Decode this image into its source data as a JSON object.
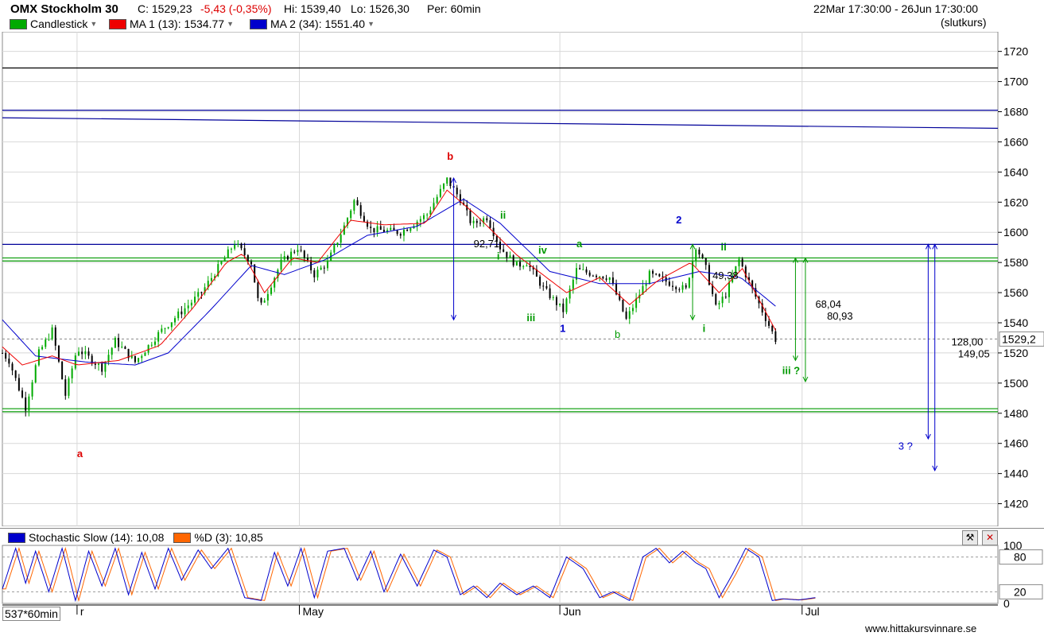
{
  "header": {
    "instrument": "OMX Stockholm 30",
    "close": "C: 1529,23",
    "change": "-5,43 (-0,35%)",
    "high": "Hi: 1539,40",
    "low": "Lo: 1526,30",
    "period": "Per: 60min",
    "range": "22Mar 17:30:00 - 26Jun 17:30:00",
    "price_type": "(slutkurs)"
  },
  "legend": {
    "candlestick": "Candlestick",
    "ma1": "MA 1 (13): 1534.77",
    "ma2": "MA 2 (34): 1551.40"
  },
  "colors": {
    "up": "#00aa00",
    "down": "#000000",
    "ma1": "#ee0000",
    "ma2": "#0000cc",
    "support": "#009900",
    "resistance": "#000099",
    "stoch_k": "#0000cc",
    "stoch_d": "#ff6600"
  },
  "stochastic": {
    "k_label": "Stochastic Slow (14): 10,08",
    "d_label": "%D (3): 10,85",
    "levels": [
      "80",
      "20"
    ],
    "axis_ticks": [
      "100",
      "80",
      "20",
      "0"
    ]
  },
  "bottom": {
    "period_label": "537*60min",
    "watermark": "www.hittakursvinnare.se"
  },
  "chart_data": {
    "type": "candlestick",
    "y_ticks": [
      1720,
      1700,
      1680,
      1660,
      1640,
      1620,
      1600,
      1580,
      1560,
      1540,
      1520,
      1500,
      1480,
      1460,
      1440,
      1420
    ],
    "ylim": [
      1405,
      1733
    ],
    "x_labels": [
      "r",
      "May",
      "Jun",
      "Jul"
    ],
    "last_price_label": "1529,2",
    "key_points": [
      {
        "t": 0,
        "p": 1520
      },
      {
        "t": 4,
        "p": 1515
      },
      {
        "t": 14,
        "p": 1484
      },
      {
        "t": 22,
        "p": 1520
      },
      {
        "t": 30,
        "p": 1535
      },
      {
        "t": 38,
        "p": 1492
      },
      {
        "t": 45,
        "p": 1523
      },
      {
        "t": 60,
        "p": 1510
      },
      {
        "t": 68,
        "p": 1528
      },
      {
        "t": 80,
        "p": 1514
      },
      {
        "t": 95,
        "p": 1534
      },
      {
        "t": 120,
        "p": 1560
      },
      {
        "t": 140,
        "p": 1593
      },
      {
        "t": 150,
        "p": 1580
      },
      {
        "t": 155,
        "p": 1549
      },
      {
        "t": 168,
        "p": 1580
      },
      {
        "t": 178,
        "p": 1590
      },
      {
        "t": 188,
        "p": 1572
      },
      {
        "t": 196,
        "p": 1580
      },
      {
        "t": 206,
        "p": 1604
      },
      {
        "t": 212,
        "p": 1621
      },
      {
        "t": 222,
        "p": 1602
      },
      {
        "t": 240,
        "p": 1600
      },
      {
        "t": 256,
        "p": 1612
      },
      {
        "t": 268,
        "p": 1635
      },
      {
        "t": 276,
        "p": 1622
      },
      {
        "t": 283,
        "p": 1605
      },
      {
        "t": 292,
        "p": 1610
      },
      {
        "t": 300,
        "p": 1590
      },
      {
        "t": 310,
        "p": 1578
      },
      {
        "t": 316,
        "p": 1580
      },
      {
        "t": 326,
        "p": 1563
      },
      {
        "t": 338,
        "p": 1548
      },
      {
        "t": 346,
        "p": 1575
      },
      {
        "t": 366,
        "p": 1570
      },
      {
        "t": 376,
        "p": 1542
      },
      {
        "t": 390,
        "p": 1572
      },
      {
        "t": 412,
        "p": 1562
      },
      {
        "t": 418,
        "p": 1591
      },
      {
        "t": 424,
        "p": 1576
      },
      {
        "t": 430,
        "p": 1550
      },
      {
        "t": 436,
        "p": 1559
      },
      {
        "t": 444,
        "p": 1582
      },
      {
        "t": 452,
        "p": 1562
      },
      {
        "t": 466,
        "p": 1529
      }
    ],
    "ma1_points": [
      {
        "t": 0,
        "p": 1524
      },
      {
        "t": 12,
        "p": 1512
      },
      {
        "t": 30,
        "p": 1518
      },
      {
        "t": 45,
        "p": 1512
      },
      {
        "t": 70,
        "p": 1515
      },
      {
        "t": 95,
        "p": 1525
      },
      {
        "t": 115,
        "p": 1550
      },
      {
        "t": 135,
        "p": 1580
      },
      {
        "t": 145,
        "p": 1586
      },
      {
        "t": 158,
        "p": 1560
      },
      {
        "t": 175,
        "p": 1583
      },
      {
        "t": 190,
        "p": 1580
      },
      {
        "t": 210,
        "p": 1608
      },
      {
        "t": 230,
        "p": 1605
      },
      {
        "t": 255,
        "p": 1606
      },
      {
        "t": 268,
        "p": 1628
      },
      {
        "t": 285,
        "p": 1612
      },
      {
        "t": 310,
        "p": 1585
      },
      {
        "t": 340,
        "p": 1560
      },
      {
        "t": 360,
        "p": 1570
      },
      {
        "t": 378,
        "p": 1552
      },
      {
        "t": 395,
        "p": 1568
      },
      {
        "t": 415,
        "p": 1580
      },
      {
        "t": 432,
        "p": 1560
      },
      {
        "t": 446,
        "p": 1576
      },
      {
        "t": 466,
        "p": 1535
      }
    ],
    "ma2_points": [
      {
        "t": 0,
        "p": 1542
      },
      {
        "t": 20,
        "p": 1518
      },
      {
        "t": 50,
        "p": 1514
      },
      {
        "t": 80,
        "p": 1512
      },
      {
        "t": 100,
        "p": 1520
      },
      {
        "t": 125,
        "p": 1548
      },
      {
        "t": 150,
        "p": 1578
      },
      {
        "t": 170,
        "p": 1572
      },
      {
        "t": 195,
        "p": 1582
      },
      {
        "t": 220,
        "p": 1598
      },
      {
        "t": 250,
        "p": 1604
      },
      {
        "t": 278,
        "p": 1622
      },
      {
        "t": 300,
        "p": 1606
      },
      {
        "t": 330,
        "p": 1574
      },
      {
        "t": 360,
        "p": 1566
      },
      {
        "t": 390,
        "p": 1566
      },
      {
        "t": 420,
        "p": 1574
      },
      {
        "t": 445,
        "p": 1570
      },
      {
        "t": 466,
        "p": 1551
      }
    ],
    "stoch_points": [
      {
        "t": 0,
        "k": 25
      },
      {
        "t": 8,
        "k": 95
      },
      {
        "t": 14,
        "k": 35
      },
      {
        "t": 20,
        "k": 90
      },
      {
        "t": 28,
        "k": 20
      },
      {
        "t": 36,
        "k": 95
      },
      {
        "t": 44,
        "k": 5
      },
      {
        "t": 52,
        "k": 90
      },
      {
        "t": 60,
        "k": 30
      },
      {
        "t": 68,
        "k": 95
      },
      {
        "t": 76,
        "k": 15
      },
      {
        "t": 84,
        "k": 88
      },
      {
        "t": 92,
        "k": 25
      },
      {
        "t": 100,
        "k": 95
      },
      {
        "t": 108,
        "k": 40
      },
      {
        "t": 118,
        "k": 92
      },
      {
        "t": 126,
        "k": 60
      },
      {
        "t": 136,
        "k": 95
      },
      {
        "t": 146,
        "k": 10
      },
      {
        "t": 156,
        "k": 5
      },
      {
        "t": 164,
        "k": 88
      },
      {
        "t": 172,
        "k": 30
      },
      {
        "t": 180,
        "k": 95
      },
      {
        "t": 188,
        "k": 10
      },
      {
        "t": 196,
        "k": 90
      },
      {
        "t": 206,
        "k": 95
      },
      {
        "t": 214,
        "k": 40
      },
      {
        "t": 222,
        "k": 90
      },
      {
        "t": 230,
        "k": 20
      },
      {
        "t": 240,
        "k": 85
      },
      {
        "t": 250,
        "k": 30
      },
      {
        "t": 260,
        "k": 92
      },
      {
        "t": 268,
        "k": 80
      },
      {
        "t": 276,
        "k": 15
      },
      {
        "t": 284,
        "k": 30
      },
      {
        "t": 292,
        "k": 10
      },
      {
        "t": 300,
        "k": 35
      },
      {
        "t": 310,
        "k": 15
      },
      {
        "t": 320,
        "k": 30
      },
      {
        "t": 330,
        "k": 10
      },
      {
        "t": 340,
        "k": 80
      },
      {
        "t": 350,
        "k": 60
      },
      {
        "t": 360,
        "k": 10
      },
      {
        "t": 368,
        "k": 20
      },
      {
        "t": 378,
        "k": 5
      },
      {
        "t": 386,
        "k": 80
      },
      {
        "t": 394,
        "k": 95
      },
      {
        "t": 402,
        "k": 70
      },
      {
        "t": 410,
        "k": 90
      },
      {
        "t": 418,
        "k": 70
      },
      {
        "t": 424,
        "k": 60
      },
      {
        "t": 432,
        "k": 10
      },
      {
        "t": 440,
        "k": 50
      },
      {
        "t": 448,
        "k": 95
      },
      {
        "t": 456,
        "k": 80
      },
      {
        "t": 464,
        "k": 5
      },
      {
        "t": 470,
        "k": 8
      },
      {
        "t": 480,
        "k": 6
      },
      {
        "t": 490,
        "k": 10
      }
    ],
    "horizontal_lines": [
      {
        "name": "upper-black-line",
        "p": 1709,
        "color": "#000000"
      },
      {
        "name": "upper-blue-line",
        "p": 1681,
        "color": "#000099"
      },
      {
        "name": "resistance-line",
        "p": 1592,
        "color": "#000099"
      },
      {
        "name": "green-line-upper",
        "p": 1583,
        "color": "#009900"
      },
      {
        "name": "green-line-upper-2",
        "p": 1581,
        "color": "#009900"
      },
      {
        "name": "green-line-lower",
        "p": 1483,
        "color": "#009900"
      },
      {
        "name": "green-line-lower-2",
        "p": 1481,
        "color": "#009900"
      }
    ],
    "trend_line": {
      "p_start": 1676,
      "p_end": 1669,
      "color": "#000099"
    },
    "last_price": 1529.23,
    "annotations": [
      {
        "text": "b",
        "t": 268,
        "p": 1648,
        "color": "#dd0000",
        "bold": true
      },
      {
        "text": "a",
        "t": 45,
        "p": 1451,
        "color": "#dd0000",
        "bold": true
      },
      {
        "text": "2",
        "t": 406,
        "p": 1606,
        "color": "#0000cc",
        "bold": true
      },
      {
        "text": "1",
        "t": 336,
        "p": 1534,
        "color": "#0000cc",
        "bold": true
      },
      {
        "text": "3 ?",
        "t": 540,
        "p": 1456,
        "color": "#0000cc",
        "bold": false
      },
      {
        "text": "ii",
        "t": 300,
        "p": 1609,
        "color": "#009900",
        "bold": true
      },
      {
        "text": "i",
        "t": 298,
        "p": 1582,
        "color": "#009900",
        "bold": true
      },
      {
        "text": "iii",
        "t": 316,
        "p": 1541,
        "color": "#009900",
        "bold": true
      },
      {
        "text": "iv",
        "t": 323,
        "p": 1586,
        "color": "#009900",
        "bold": true
      },
      {
        "text": "a",
        "t": 346,
        "p": 1590,
        "color": "#009900",
        "bold": true
      },
      {
        "text": "b",
        "t": 369,
        "p": 1530,
        "color": "#009900",
        "bold": false
      },
      {
        "text": "ii",
        "t": 433,
        "p": 1588,
        "color": "#009900",
        "bold": true
      },
      {
        "text": "i",
        "t": 422,
        "p": 1534,
        "color": "#009900",
        "bold": true
      },
      {
        "text": "iii ?",
        "t": 470,
        "p": 1506,
        "color": "#009900",
        "bold": true
      },
      {
        "text": "92,71",
        "t": 284,
        "p": 1590,
        "color": "#000000",
        "bold": false
      },
      {
        "text": "49,38",
        "t": 428,
        "p": 1569,
        "color": "#000000",
        "bold": false
      },
      {
        "text": "68,04",
        "t": 490,
        "p": 1550,
        "color": "#000000",
        "bold": false
      },
      {
        "text": "80,93",
        "t": 497,
        "p": 1542,
        "color": "#000000",
        "bold": false
      },
      {
        "text": "128,00",
        "t": 572,
        "p": 1525,
        "color": "#000000",
        "bold": false
      },
      {
        "text": "149,05",
        "t": 576,
        "p": 1517,
        "color": "#000000",
        "bold": false
      }
    ],
    "arrows": [
      {
        "name": "arrow-b-drop",
        "t": 272,
        "p1": 1636,
        "p2": 1542,
        "color": "#0000cc"
      },
      {
        "name": "arrow-2-drop",
        "t": 416,
        "p1": 1592,
        "p2": 1542,
        "color": "#009900"
      },
      {
        "name": "arrow-iii-target-1",
        "t": 478,
        "p1": 1583,
        "p2": 1515,
        "color": "#009900"
      },
      {
        "name": "arrow-iii-target-2",
        "t": 484,
        "p1": 1583,
        "p2": 1501,
        "color": "#009900"
      },
      {
        "name": "arrow-3-target-1",
        "t": 558,
        "p1": 1592,
        "p2": 1463,
        "color": "#0000cc"
      },
      {
        "name": "arrow-3-target-2",
        "t": 562,
        "p1": 1592,
        "p2": 1442,
        "color": "#0000cc"
      }
    ]
  }
}
